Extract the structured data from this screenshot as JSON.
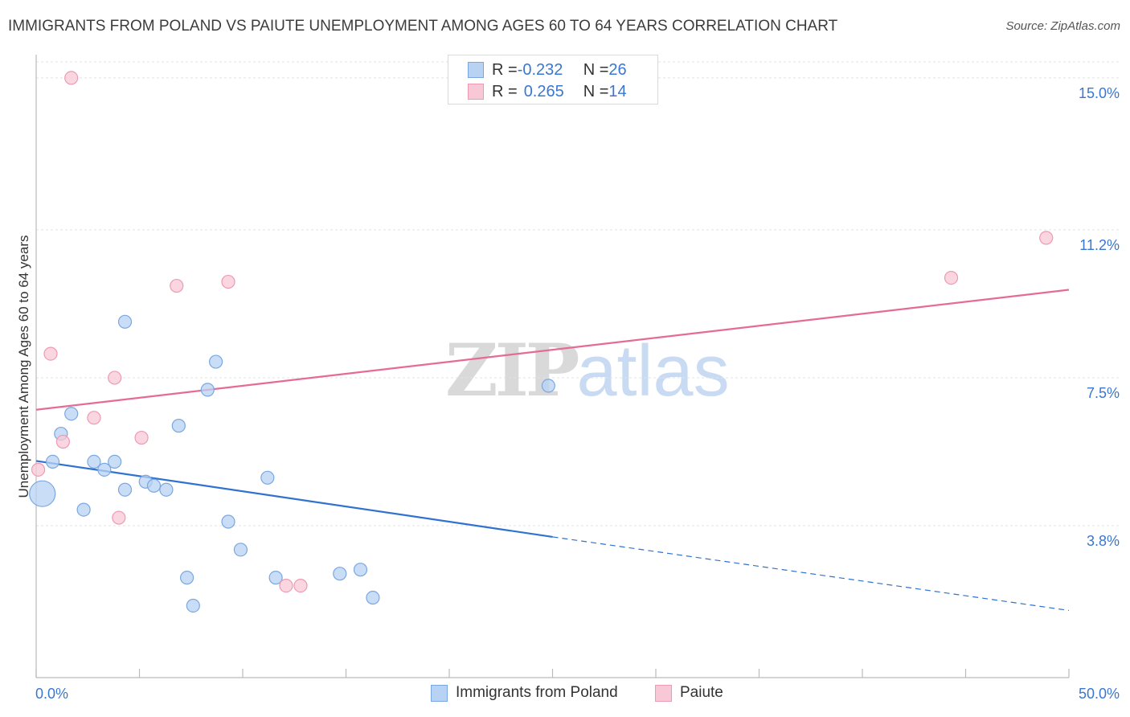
{
  "title": "IMMIGRANTS FROM POLAND VS PAIUTE UNEMPLOYMENT AMONG AGES 60 TO 64 YEARS CORRELATION CHART",
  "source": "Source: ZipAtlas.com",
  "watermark": {
    "zip": "ZIP",
    "atlas": "atlas"
  },
  "legend": {
    "poland": {
      "r_label": "R = ",
      "r_value": "-0.232",
      "n_label": "N = ",
      "n_value": "26"
    },
    "paiute": {
      "r_label": "R = ",
      "r_value": "0.265",
      "n_label": "N = ",
      "n_value": "14"
    }
  },
  "colors": {
    "poland_fill": "#b8d2f4",
    "poland_stroke": "#7aa7e0",
    "poland_line": "#2f72d0",
    "paiute_fill": "#f8c8d6",
    "paiute_stroke": "#ee9ab3",
    "paiute_line": "#e66b93",
    "axis_text": "#3a77d0",
    "grid": "#e3e3e3"
  },
  "chart_data": {
    "type": "scatter",
    "title": "IMMIGRANTS FROM POLAND VS PAIUTE UNEMPLOYMENT AMONG AGES 60 TO 64 YEARS CORRELATION CHART",
    "xlabel": "",
    "ylabel": "Unemployment Among Ages 60 to 64 years",
    "xlim": [
      0,
      50
    ],
    "ylim": [
      0.0,
      15.4
    ],
    "x_tick_labels": [
      "0.0%",
      "50.0%"
    ],
    "y_ticks": [
      3.8,
      7.5,
      11.2,
      15.0
    ],
    "y_tick_labels": [
      "3.8%",
      "7.5%",
      "11.2%",
      "15.0%"
    ],
    "grid": true,
    "legend_position": "top-center",
    "series": [
      {
        "name": "Immigrants from Poland",
        "points": [
          {
            "x": 0.3,
            "y": 4.6,
            "size": "large"
          },
          {
            "x": 0.8,
            "y": 5.4
          },
          {
            "x": 1.2,
            "y": 6.1
          },
          {
            "x": 1.7,
            "y": 6.6
          },
          {
            "x": 2.3,
            "y": 4.2
          },
          {
            "x": 2.8,
            "y": 5.4
          },
          {
            "x": 3.3,
            "y": 5.2
          },
          {
            "x": 3.8,
            "y": 5.4
          },
          {
            "x": 4.3,
            "y": 8.9
          },
          {
            "x": 4.3,
            "y": 4.7
          },
          {
            "x": 5.3,
            "y": 4.9
          },
          {
            "x": 5.7,
            "y": 4.8
          },
          {
            "x": 6.3,
            "y": 4.7
          },
          {
            "x": 6.9,
            "y": 6.3
          },
          {
            "x": 7.3,
            "y": 2.5
          },
          {
            "x": 7.6,
            "y": 1.8
          },
          {
            "x": 8.3,
            "y": 7.2
          },
          {
            "x": 8.7,
            "y": 7.9
          },
          {
            "x": 9.3,
            "y": 3.9
          },
          {
            "x": 9.9,
            "y": 3.2
          },
          {
            "x": 11.6,
            "y": 2.5
          },
          {
            "x": 11.2,
            "y": 5.0
          },
          {
            "x": 14.7,
            "y": 2.6
          },
          {
            "x": 15.7,
            "y": 2.7
          },
          {
            "x": 16.3,
            "y": 2.0
          },
          {
            "x": 24.8,
            "y": 7.3
          }
        ],
        "trend": {
          "x0": 0.0,
          "y0": 5.42,
          "x1": 25.0,
          "y1": 3.52,
          "dashed_to_x": 50.0,
          "dashed_to_y": 1.68
        }
      },
      {
        "name": "Paiute",
        "points": [
          {
            "x": 0.1,
            "y": 5.2
          },
          {
            "x": 0.7,
            "y": 8.1
          },
          {
            "x": 1.3,
            "y": 5.9
          },
          {
            "x": 1.7,
            "y": 15.0
          },
          {
            "x": 2.8,
            "y": 6.5
          },
          {
            "x": 3.8,
            "y": 7.5
          },
          {
            "x": 4.0,
            "y": 4.0
          },
          {
            "x": 5.1,
            "y": 6.0
          },
          {
            "x": 6.8,
            "y": 9.8
          },
          {
            "x": 9.3,
            "y": 9.9
          },
          {
            "x": 12.1,
            "y": 2.3
          },
          {
            "x": 12.8,
            "y": 2.3
          },
          {
            "x": 44.3,
            "y": 10.0
          },
          {
            "x": 48.9,
            "y": 11.0
          }
        ],
        "trend": {
          "x0": 0.0,
          "y0": 6.7,
          "x1": 50.0,
          "y1": 9.7
        }
      }
    ]
  }
}
